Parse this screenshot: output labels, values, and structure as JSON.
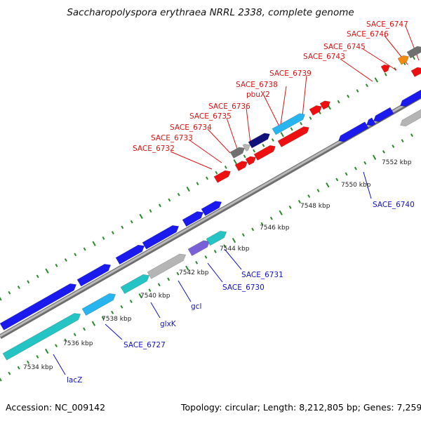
{
  "title": "Saccharopolyspora erythraea NRRL 2338, complete genome",
  "footer": {
    "accession": "Accession: NC_009142",
    "summary": "Topology: circular; Length: 8,212,805 bp; Genes: 7,259"
  },
  "colors": {
    "backbone": "#8a8a8a",
    "tick": "#2a8a2a",
    "forward_label": "#e01010",
    "reverse_label": "#1010cc",
    "gene_blue": "#1a1aee",
    "gene_cyan": "#25c4c4",
    "gene_lightblue": "#28b4ee",
    "gene_red": "#ee1010",
    "gene_purple": "#7a60d8",
    "gene_gray": "#b5b5b5",
    "gene_darkgray": "#707070",
    "gene_navy": "#10107a",
    "gene_orange": "#f08a10"
  },
  "position_scale": {
    "labels": [
      "7534 kbp",
      "7536 kbp",
      "7538 kbp",
      "7540 kbp",
      "7542 kbp",
      "7544 kbp",
      "7546 kbp",
      "7548 kbp",
      "7550 kbp",
      "7552 kbp"
    ]
  },
  "forward_genes": [
    "SACE_6732",
    "SACE_6733",
    "SACE_6734",
    "SACE_6735",
    "SACE_6736",
    "SACE_6738",
    "pbuX2",
    "SACE_6739",
    "SACE_6743",
    "SACE_6745",
    "SACE_6746",
    "SACE_6747"
  ],
  "reverse_genes": [
    "lacZ",
    "SACE_6727",
    "glxK",
    "gcl",
    "SACE_6730",
    "SACE_6731",
    "SACE_6740"
  ]
}
